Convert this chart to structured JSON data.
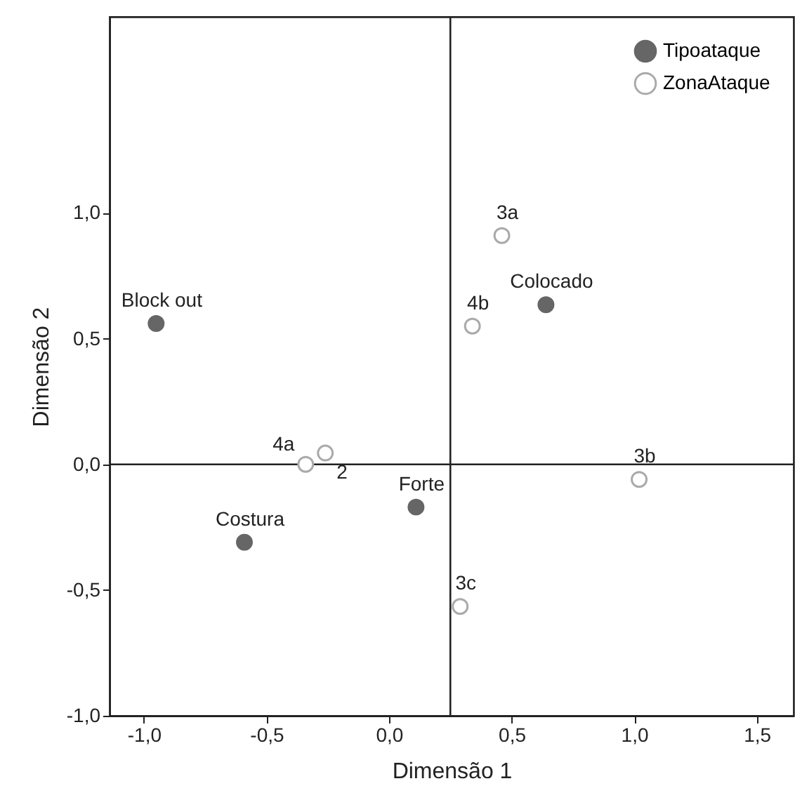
{
  "chart_data": {
    "type": "scatter",
    "xlabel": "Dimensão 1",
    "ylabel": "Dimensão 2",
    "series": [
      {
        "name": "Tipoataque",
        "color": "#666666",
        "x": [
          -0.95,
          0.64,
          0.11,
          -0.59
        ],
        "values": [
          0.56,
          0.635,
          -0.17,
          -0.31
        ]
      },
      {
        "name": "ZonaAtaque",
        "color": "#aaaaaa",
        "x": [
          0.46,
          0.34,
          -0.34,
          -0.26,
          1.02,
          0.29
        ],
        "values": [
          0.91,
          0.55,
          0.0,
          0.045,
          -0.06,
          -0.565
        ]
      }
    ],
    "annotations": [
      {
        "text": "Block out",
        "x": -0.95,
        "y": 0.56
      },
      {
        "text": "3a",
        "x": 0.46,
        "y": 0.91
      },
      {
        "text": "Colocado",
        "x": 0.64,
        "y": 0.635
      },
      {
        "text": "4b",
        "x": 0.34,
        "y": 0.55
      },
      {
        "text": "4a",
        "x": -0.34,
        "y": 0.0
      },
      {
        "text": "2",
        "x": -0.26,
        "y": 0.045
      },
      {
        "text": "3b",
        "x": 1.02,
        "y": -0.06
      },
      {
        "text": "Forte",
        "x": 0.11,
        "y": -0.17
      },
      {
        "text": "Costura",
        "x": -0.59,
        "y": -0.31
      },
      {
        "text": "3c",
        "x": 0.29,
        "y": -0.565
      }
    ],
    "ref_lines": [
      {
        "axis": "y",
        "value": 0
      },
      {
        "axis": "x",
        "value": 0.25
      }
    ],
    "xlim": [
      -1.14,
      1.65
    ],
    "ylim": [
      -1.0,
      1.78
    ],
    "xticks": [
      {
        "value": -1.0,
        "label": "-1,0"
      },
      {
        "value": -0.5,
        "label": "-0,5"
      },
      {
        "value": 0.0,
        "label": "0,0"
      },
      {
        "value": 0.5,
        "label": "0,5"
      },
      {
        "value": 1.0,
        "label": "1,0"
      },
      {
        "value": 1.5,
        "label": "1,5"
      }
    ],
    "yticks": [
      {
        "value": -1.0,
        "label": "-1,0"
      },
      {
        "value": -0.5,
        "label": "-0,5"
      },
      {
        "value": 0.0,
        "label": "0,0"
      },
      {
        "value": 0.5,
        "label": "0,5"
      },
      {
        "value": 1.0,
        "label": "1,0"
      }
    ],
    "grid": false,
    "legend": "top right",
    "marker": "circle"
  }
}
